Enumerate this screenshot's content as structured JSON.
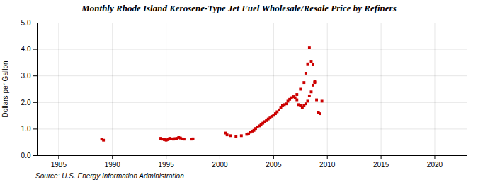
{
  "chart_data": {
    "type": "scatter",
    "title": "Monthly Rhode Island Kerosene-Type Jet Fuel Wholesale/Resale Price by Refiners",
    "ylabel": "Dollars per Gallon",
    "caption": "Source: U.S. Energy Information Administration",
    "x": [
      1989.0,
      1989.17,
      1994.5,
      1994.67,
      1994.83,
      1995.0,
      1995.17,
      1995.33,
      1995.5,
      1995.67,
      1995.83,
      1996.0,
      1996.17,
      1996.33,
      1996.5,
      1996.67,
      1997.33,
      1997.5,
      2000.5,
      2000.67,
      2001.0,
      2001.5,
      2002.0,
      2002.5,
      2002.67,
      2002.83,
      2003.0,
      2003.17,
      2003.33,
      2003.5,
      2003.67,
      2003.83,
      2004.0,
      2004.17,
      2004.33,
      2004.5,
      2004.67,
      2004.83,
      2005.0,
      2005.17,
      2005.33,
      2005.5,
      2005.67,
      2005.83,
      2006.0,
      2006.17,
      2006.33,
      2006.5,
      2006.67,
      2006.83,
      2007.0,
      2007.17,
      2007.33,
      2007.5,
      2007.67,
      2007.83,
      2008.0,
      2008.17,
      2008.33,
      2008.5,
      2008.67,
      2008.83,
      2007.17,
      2007.5,
      2007.83,
      2008.0,
      2008.17,
      2008.33,
      2008.5,
      2008.67,
      2008.83,
      2009.0,
      2009.17,
      2009.33,
      2009.5
    ],
    "values": [
      0.62,
      0.58,
      0.65,
      0.62,
      0.6,
      0.58,
      0.6,
      0.65,
      0.63,
      0.62,
      0.64,
      0.65,
      0.68,
      0.66,
      0.63,
      0.62,
      0.62,
      0.63,
      0.85,
      0.78,
      0.75,
      0.72,
      0.75,
      0.8,
      0.82,
      0.88,
      0.92,
      0.95,
      1.02,
      1.08,
      1.12,
      1.18,
      1.22,
      1.28,
      1.32,
      1.38,
      1.42,
      1.48,
      1.52,
      1.58,
      1.65,
      1.72,
      1.82,
      1.88,
      1.92,
      1.95,
      2.05,
      2.12,
      2.18,
      2.22,
      2.18,
      2.1,
      1.92,
      1.88,
      1.82,
      1.88,
      1.95,
      2.05,
      2.25,
      2.4,
      2.65,
      2.78,
      2.3,
      2.5,
      2.75,
      3.1,
      3.45,
      4.08,
      3.55,
      3.42,
      2.75,
      2.1,
      1.62,
      1.58,
      2.05
    ],
    "color": "#cc0000",
    "marker": "square",
    "xlim": [
      1983,
      2023
    ],
    "xticks": [
      1985,
      1990,
      1995,
      2000,
      2005,
      2010,
      2015,
      2020
    ],
    "ylim": [
      0.0,
      5.0
    ],
    "yticks": [
      {
        "value": 0,
        "label": "0.0"
      },
      {
        "value": 1,
        "label": "1.0"
      },
      {
        "value": 2,
        "label": "2.0"
      },
      {
        "value": 3,
        "label": "3.0"
      },
      {
        "value": 4,
        "label": "4.0"
      },
      {
        "value": 5,
        "label": "5.0"
      }
    ],
    "grid": true
  }
}
